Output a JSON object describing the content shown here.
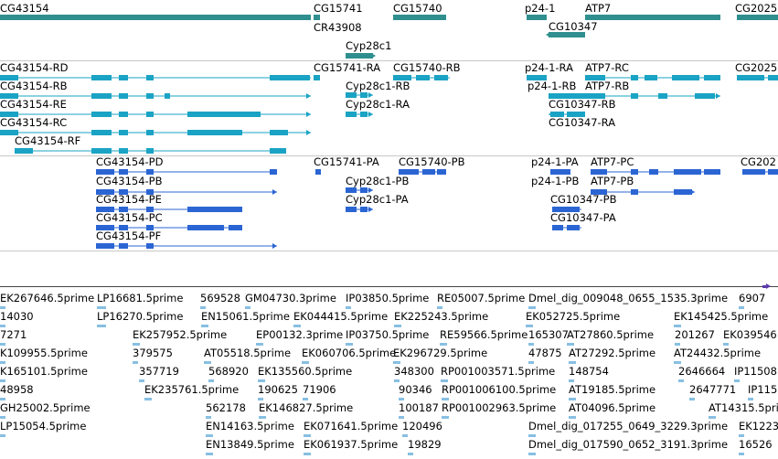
{
  "browser": {
    "colors": {
      "gene": "#2f8f8f",
      "transcript_1": "#1aa3c4",
      "transcript_2": "#2b65d3",
      "est": "#87bfe2",
      "scale": "#5b3ca8"
    },
    "gene_track": {
      "features": [
        {
          "label": "CG43154"
        },
        {
          "label": "CG15741"
        },
        {
          "label": "CR43908"
        },
        {
          "label": "Cyp28c1"
        },
        {
          "label": "CG15740"
        },
        {
          "label": "p24-1"
        },
        {
          "label": "CG10347"
        },
        {
          "label": "ATP7"
        },
        {
          "label": "CG2025"
        }
      ]
    },
    "transcript_track_1": {
      "features": [
        {
          "label": "CG43154-RD"
        },
        {
          "label": "CG43154-RB"
        },
        {
          "label": "CG43154-RE"
        },
        {
          "label": "CG43154-RC"
        },
        {
          "label": "CG43154-RF"
        },
        {
          "label": "CG15741-RA"
        },
        {
          "label": "Cyp28c1-RB"
        },
        {
          "label": "Cyp28c1-RA"
        },
        {
          "label": "CG15740-RB"
        },
        {
          "label": "p24-1-RA"
        },
        {
          "label": "p24-1-RB"
        },
        {
          "label": "CG10347-RB"
        },
        {
          "label": "CG10347-RA"
        },
        {
          "label": "ATP7-RC"
        },
        {
          "label": "ATP7-RB"
        },
        {
          "label": "CG2025"
        }
      ]
    },
    "transcript_track_2": {
      "features": [
        {
          "label": "CG43154-PD"
        },
        {
          "label": "CG43154-PB"
        },
        {
          "label": "CG43154-PE"
        },
        {
          "label": "CG43154-PC"
        },
        {
          "label": "CG43154-PF"
        },
        {
          "label": "CG15741-PA"
        },
        {
          "label": "Cyp28c1-PB"
        },
        {
          "label": "Cyp28c1-PA"
        },
        {
          "label": "CG15740-PB"
        },
        {
          "label": "p24-1-PA"
        },
        {
          "label": "p24-1-PB"
        },
        {
          "label": "CG10347-PB"
        },
        {
          "label": "CG10347-PA"
        },
        {
          "label": "ATP7-PC"
        },
        {
          "label": "ATP7-PB"
        },
        {
          "label": "CG202"
        }
      ]
    },
    "est_track": {
      "features": [
        {
          "label": "EK267646.5prime"
        },
        {
          "label": "LP16681.5prime"
        },
        {
          "label": "569528"
        },
        {
          "label": "GM04730.3prime"
        },
        {
          "label": "IP03850.5prime"
        },
        {
          "label": "RE05007.5prime"
        },
        {
          "label": "Dmel_dig_009048_0655_1535.3prime"
        },
        {
          "label": "6907"
        },
        {
          "label": "14030"
        },
        {
          "label": "LP16270.5prime"
        },
        {
          "label": "EN15061.5prime"
        },
        {
          "label": "EK044415.5prime"
        },
        {
          "label": "EK225243.5prime"
        },
        {
          "label": "EK052725.5prime"
        },
        {
          "label": "EK145425.5prime"
        },
        {
          "label": "7271"
        },
        {
          "label": "EK257952.5prime"
        },
        {
          "label": "EP00132.3prime"
        },
        {
          "label": "IP03750.5prime"
        },
        {
          "label": "RE59566.5prime"
        },
        {
          "label": "165307"
        },
        {
          "label": "AT27860.5prime"
        },
        {
          "label": "201267"
        },
        {
          "label": "EK039546"
        },
        {
          "label": "K109955.5prime"
        },
        {
          "label": "379575"
        },
        {
          "label": "AT05518.5prime"
        },
        {
          "label": "EK060706.5prime"
        },
        {
          "label": "EK296729.5prime"
        },
        {
          "label": "47875"
        },
        {
          "label": "AT27292.5prime"
        },
        {
          "label": "AT24432.5prime"
        },
        {
          "label": "K165101.5prime"
        },
        {
          "label": "357719"
        },
        {
          "label": "568920"
        },
        {
          "label": "EK135560.5prime"
        },
        {
          "label": "348300"
        },
        {
          "label": "RP001003571.5prime"
        },
        {
          "label": "148754"
        },
        {
          "label": "2646664"
        },
        {
          "label": "IP11508"
        },
        {
          "label": "48958"
        },
        {
          "label": "EK235761.5prime"
        },
        {
          "label": "190625"
        },
        {
          "label": "71906"
        },
        {
          "label": "90346"
        },
        {
          "label": "RP001006100.5prime"
        },
        {
          "label": "AT19185.5prime"
        },
        {
          "label": "2647771"
        },
        {
          "label": "IP115"
        },
        {
          "label": "GH25002.5prime"
        },
        {
          "label": "562178"
        },
        {
          "label": "EK146827.5prime"
        },
        {
          "label": "100187"
        },
        {
          "label": "RP001002963.5prime"
        },
        {
          "label": "AT04096.5prime"
        },
        {
          "label": "AT14315.5prime"
        },
        {
          "label": "LP15054.5prime"
        },
        {
          "label": "EN14163.5prime"
        },
        {
          "label": "EK071641.5prime"
        },
        {
          "label": "120496"
        },
        {
          "label": "Dmel_dig_017255_0649_3229.3prime"
        },
        {
          "label": "EK1223"
        },
        {
          "label": "EN13849.5prime"
        },
        {
          "label": "EK061937.5prime"
        },
        {
          "label": "19829"
        },
        {
          "label": "Dmel_dig_017590_0652_3191.3prime"
        },
        {
          "label": "16526"
        }
      ]
    }
  }
}
